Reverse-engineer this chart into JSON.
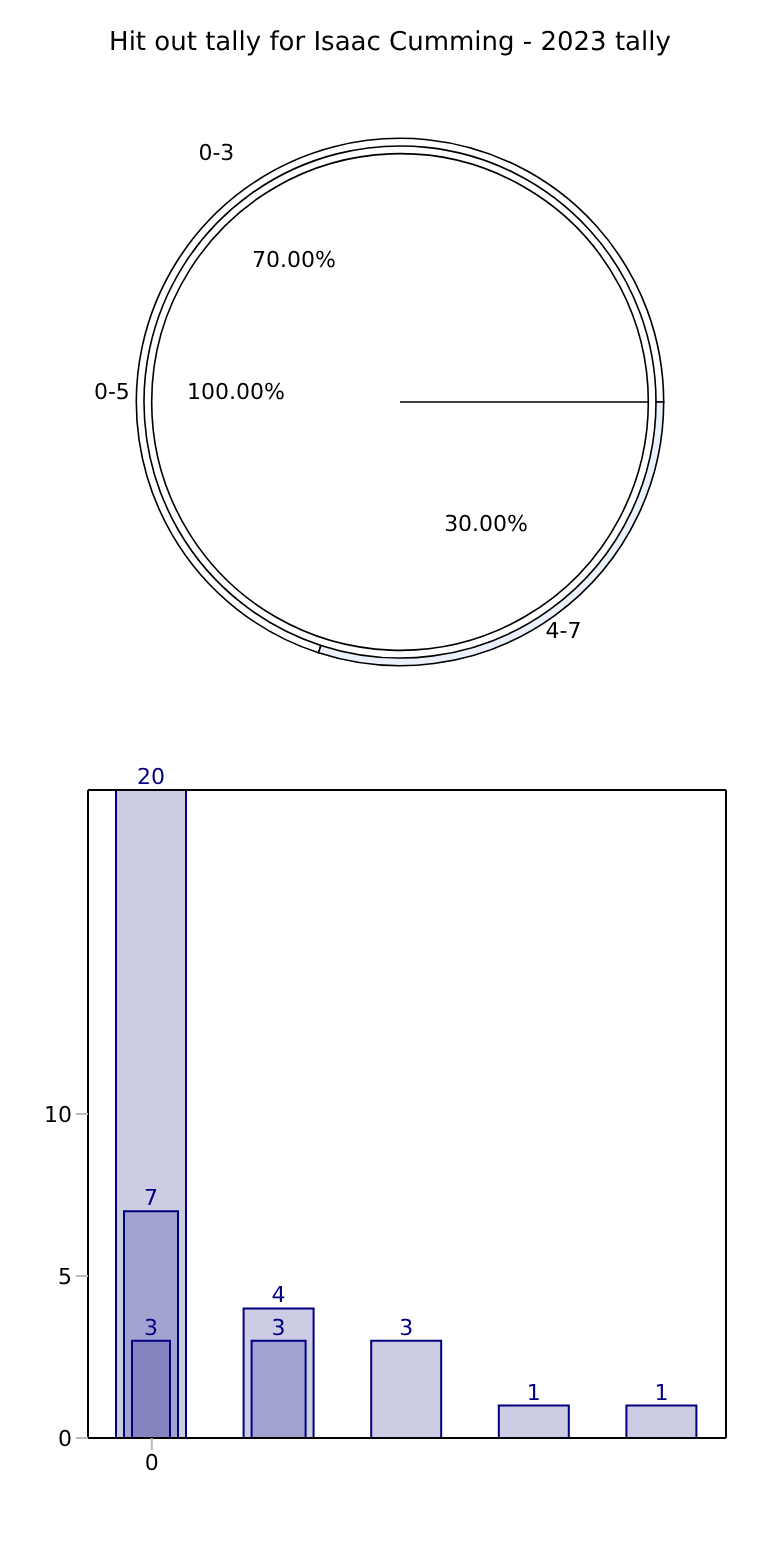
{
  "chart_data": [
    {
      "type": "pie",
      "title": "Hit out tally for Isaac Cumming - 2023 tally",
      "categories": [
        "0-5"
      ],
      "values": [
        100
      ],
      "colors": [
        "#ffffff"
      ],
      "value_labels": [
        "100.00%"
      ]
    },
    {
      "type": "donut",
      "categories": [
        "0-3",
        "4-7"
      ],
      "values": [
        70,
        30
      ],
      "colors": [
        "#ffffff",
        "#eaf0fc"
      ],
      "value_labels": [
        "70.00%",
        "30.00%"
      ]
    },
    {
      "type": "bar",
      "categories": [
        "0",
        null,
        null,
        null,
        null
      ],
      "ylim": [
        0,
        20
      ],
      "yticks": [
        0,
        5,
        10
      ],
      "data_labels": true,
      "series": [
        {
          "color": "#cccce5",
          "values": [
            20,
            4,
            3,
            1,
            1
          ]
        },
        {
          "color": "#a3a3d1",
          "values": [
            7,
            3,
            null,
            null,
            null
          ]
        },
        {
          "color": "#8484c1",
          "values": [
            3,
            null,
            null,
            null,
            null
          ]
        }
      ]
    }
  ]
}
